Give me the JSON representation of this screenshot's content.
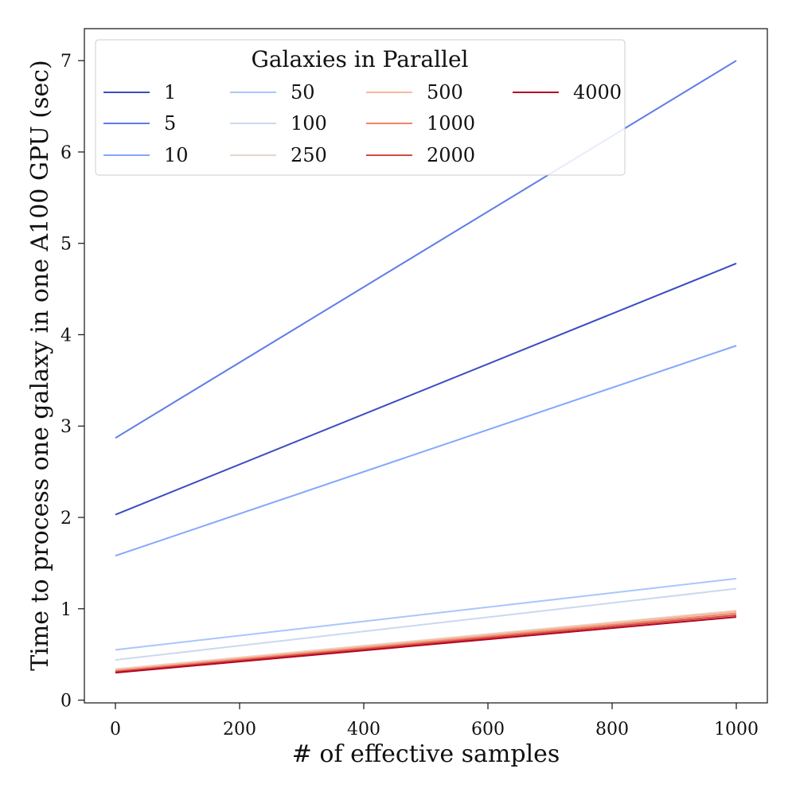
{
  "chart_data": {
    "type": "line",
    "title": "",
    "xlabel": "# of effective samples",
    "ylabel": "Time to process one galaxy in one A100 GPU (sec)",
    "xlim": [
      -50,
      1050
    ],
    "ylim": [
      -0.03,
      7.35
    ],
    "xticks": [
      0,
      200,
      400,
      600,
      800,
      1000
    ],
    "yticks": [
      0,
      1,
      2,
      3,
      4,
      5,
      6,
      7
    ],
    "grid": false,
    "legend": {
      "title": "Galaxies in Parallel",
      "placement": "upper-left",
      "columns": 4
    },
    "series": [
      {
        "name": "1",
        "color": "#3b4cc0",
        "x": [
          0,
          1000
        ],
        "y": [
          2.03,
          4.78
        ]
      },
      {
        "name": "5",
        "color": "#5e7de7",
        "x": [
          0,
          1000
        ],
        "y": [
          2.87,
          7.0
        ]
      },
      {
        "name": "10",
        "color": "#84a7fc",
        "x": [
          0,
          1000
        ],
        "y": [
          1.58,
          3.88
        ]
      },
      {
        "name": "50",
        "color": "#a9c6fd",
        "x": [
          0,
          1000
        ],
        "y": [
          0.55,
          1.33
        ]
      },
      {
        "name": "100",
        "color": "#cbd8ee",
        "x": [
          0,
          1000
        ],
        "y": [
          0.44,
          1.22
        ]
      },
      {
        "name": "250",
        "color": "#e7d6cc",
        "x": [
          0,
          1000
        ],
        "y": [
          0.34,
          0.98
        ]
      },
      {
        "name": "500",
        "color": "#f7b99e",
        "x": [
          0,
          1000
        ],
        "y": [
          0.33,
          0.97
        ]
      },
      {
        "name": "1000",
        "color": "#ee8468",
        "x": [
          0,
          1000
        ],
        "y": [
          0.32,
          0.95
        ]
      },
      {
        "name": "2000",
        "color": "#d24b40",
        "x": [
          0,
          1000
        ],
        "y": [
          0.31,
          0.93
        ]
      },
      {
        "name": "4000",
        "color": "#b40426",
        "x": [
          0,
          1000
        ],
        "y": [
          0.3,
          0.91
        ]
      }
    ]
  }
}
